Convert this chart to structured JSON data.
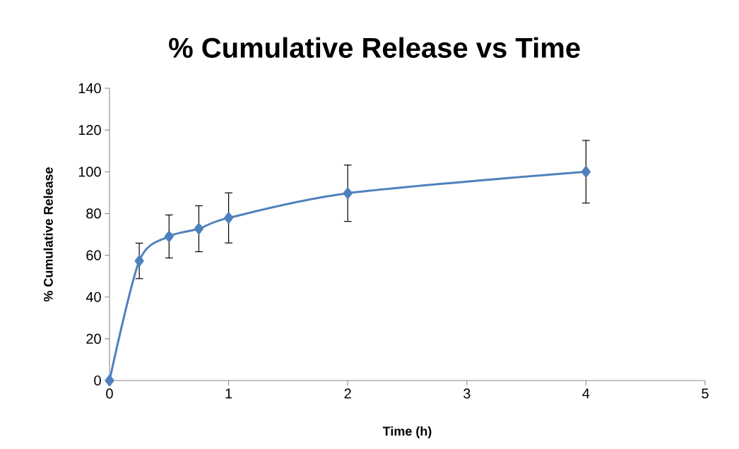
{
  "chart_data": {
    "type": "line",
    "title": "% Cumulative Release vs Time",
    "xlabel": "Time (h)",
    "ylabel": "% Cumulative Release",
    "x": [
      0,
      0.25,
      0.5,
      0.75,
      1,
      2,
      4
    ],
    "series": [
      {
        "color": "#4f81bd",
        "values": [
          0,
          57.3,
          69,
          72.7,
          77.9,
          89.7,
          100
        ],
        "errors": [
          null,
          8.5,
          10.3,
          11,
          12,
          13.5,
          15
        ]
      }
    ],
    "xlim": [
      0,
      5
    ],
    "ylim": [
      0,
      140
    ],
    "xticks": [
      0,
      1,
      2,
      3,
      4,
      5
    ],
    "yticks": [
      0,
      20,
      40,
      60,
      80,
      100,
      120,
      140
    ],
    "marker": "diamond",
    "line_style": "solid",
    "grid": false
  }
}
